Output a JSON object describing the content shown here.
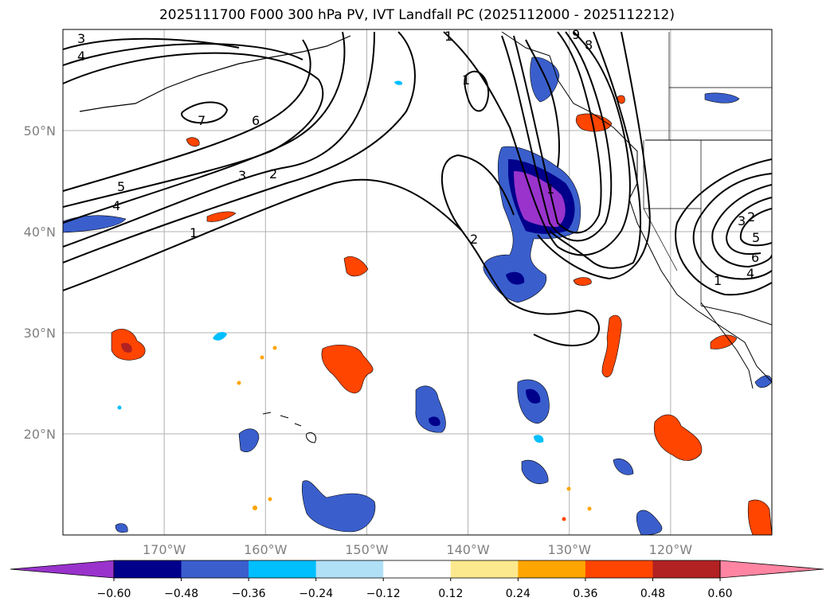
{
  "title": "2025111700 F000 300 hPa PV, IVT Landfall PC (2025112000 - 2025112212)",
  "map": {
    "lon_range": [
      -180,
      -110
    ],
    "lat_range": [
      10,
      60
    ],
    "lat_ticks": [
      {
        "value": 50,
        "label": "50°N"
      },
      {
        "value": 40,
        "label": "40°N"
      },
      {
        "value": 30,
        "label": "30°N"
      },
      {
        "value": 20,
        "label": "20°N"
      }
    ],
    "lon_ticks": [
      {
        "value": -170,
        "label": "170°W"
      },
      {
        "value": -160,
        "label": "160°W"
      },
      {
        "value": -150,
        "label": "150°W"
      },
      {
        "value": -140,
        "label": "140°W"
      },
      {
        "value": -130,
        "label": "130°W"
      },
      {
        "value": -120,
        "label": "120°W"
      }
    ],
    "contour_labels": [
      "3",
      "4",
      "7",
      "6",
      "5",
      "4",
      "3",
      "2",
      "1",
      "1",
      "1",
      "2",
      "9",
      "8",
      "1",
      "3",
      "2",
      "5",
      "6",
      "4",
      "1"
    ]
  },
  "colorbar": {
    "colors": [
      "#9933cc",
      "#00008b",
      "#3a5fcd",
      "#00bfff",
      "#b0e0f6",
      "#ffffff",
      "#fce98e",
      "#ffa500",
      "#ff4500",
      "#b22222",
      "#ff85a2"
    ],
    "tick_labels": [
      "−0.60",
      "−0.48",
      "−0.36",
      "−0.24",
      "−0.12",
      "0.12",
      "0.24",
      "0.36",
      "0.48",
      "0.60"
    ]
  }
}
